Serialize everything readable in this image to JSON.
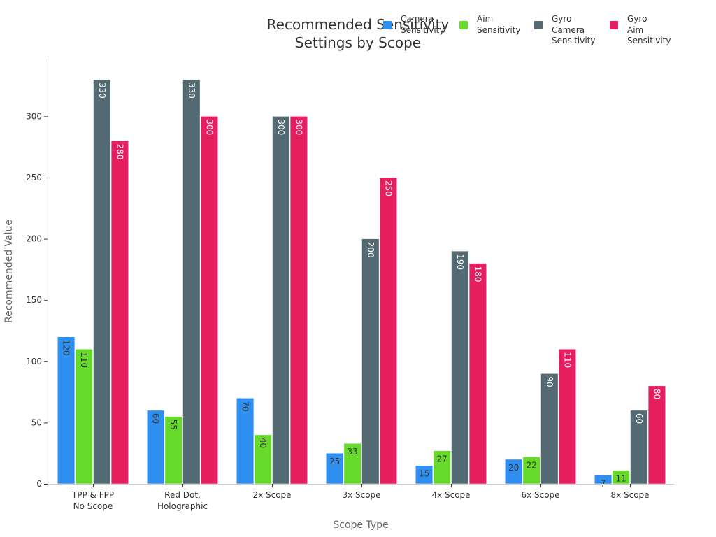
{
  "chart_data": {
    "type": "bar",
    "title": "Recommended Sensitivity\nSettings by Scope",
    "xlabel": "Scope Type",
    "ylabel": "Recommended Value",
    "ylim": [
      0,
      345
    ],
    "yticks": [
      0,
      50,
      100,
      150,
      200,
      250,
      300
    ],
    "grid": false,
    "legend_position": "top-right",
    "categories": [
      "TPP & FPP\nNo Scope",
      "Red Dot,\nHolographic",
      "2x Scope",
      "3x Scope",
      "4x Scope",
      "6x Scope",
      "8x Scope"
    ],
    "series": [
      {
        "name": "Camera\nSensitivity",
        "color": "#2f8ff0",
        "label_color": "#333333",
        "values": [
          120,
          60,
          70,
          25,
          15,
          20,
          7
        ]
      },
      {
        "name": "Aim\nSensitivity",
        "color": "#66d92b",
        "label_color": "#333333",
        "values": [
          110,
          55,
          40,
          33,
          27,
          22,
          11
        ]
      },
      {
        "name": "Gyro\nCamera\nSensitivity",
        "color": "#546a73",
        "label_color": "#ffffff",
        "values": [
          330,
          330,
          300,
          200,
          190,
          90,
          60
        ]
      },
      {
        "name": "Gyro\nAim\nSensitivity",
        "color": "#e51e5f",
        "label_color": "#ffffff",
        "values": [
          280,
          300,
          300,
          250,
          180,
          110,
          80
        ]
      }
    ]
  }
}
